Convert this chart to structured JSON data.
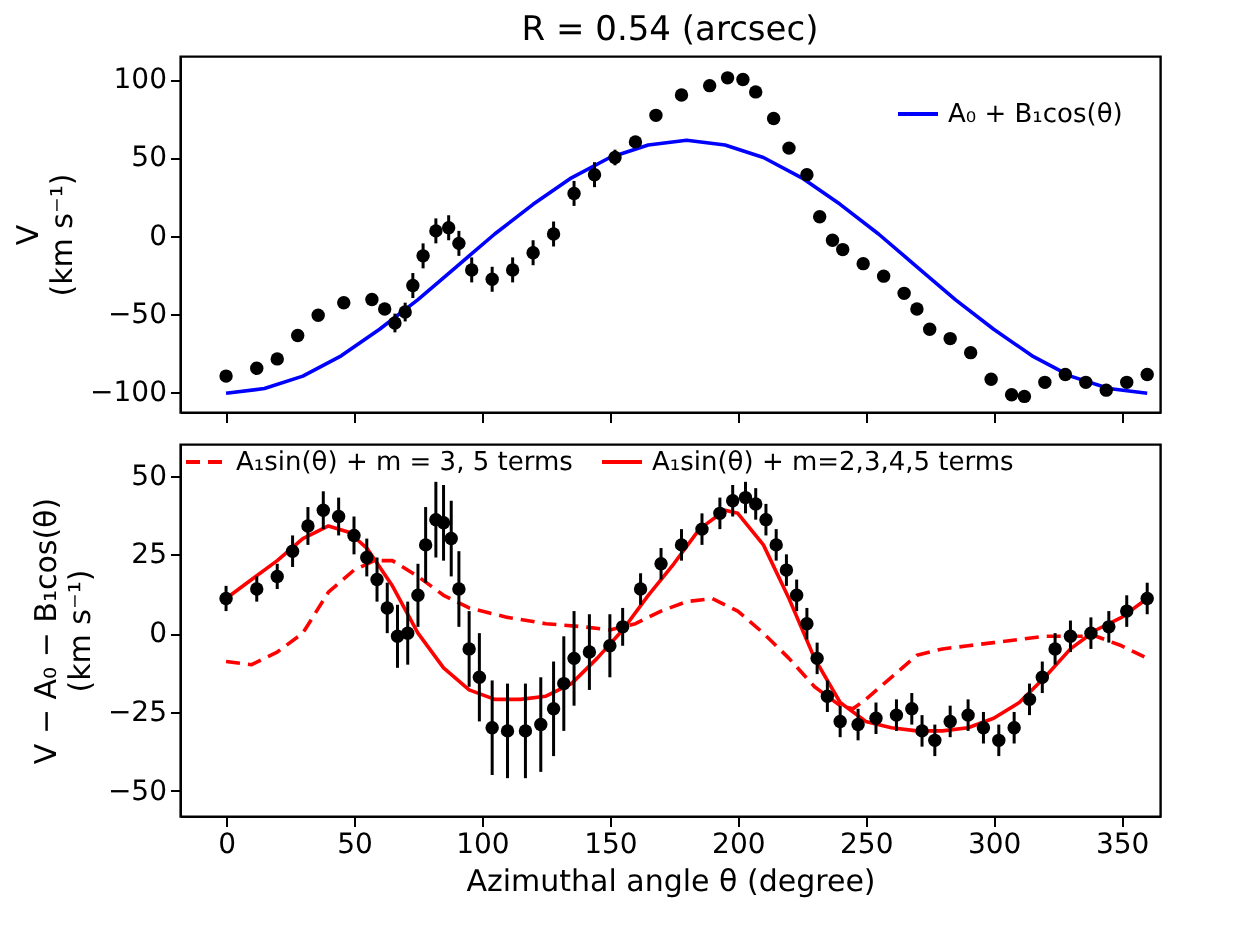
{
  "chart_data": [
    {
      "type": "scatter",
      "title": "R = 0.54 (arcsec)",
      "ylabel": "V\n(km s⁻¹)",
      "xlim": [
        -18,
        365
      ],
      "xticks": [
        0,
        50,
        100,
        150,
        200,
        250,
        300,
        350
      ],
      "ylim": [
        -113,
        115
      ],
      "yticks": [
        -100,
        -50,
        0,
        50,
        100
      ],
      "tick_labels": "y",
      "legend": "top right",
      "series": [
        {
          "marker": "circle",
          "color": "#000000",
          "x": [
            0,
            12,
            20,
            28,
            36,
            46,
            57,
            62,
            66,
            70,
            73,
            77,
            82,
            87,
            91,
            96,
            104,
            112,
            120,
            128,
            136,
            144,
            152,
            160,
            168,
            178,
            189,
            196,
            202,
            207,
            214,
            220,
            227,
            232,
            237,
            241,
            249,
            257,
            265,
            270,
            275,
            283,
            291,
            299,
            307,
            312,
            320,
            328,
            336,
            344,
            352,
            360
          ],
          "values": [
            -90,
            -85,
            -79,
            -64,
            -51,
            -43,
            -41,
            -47,
            -56,
            -49,
            -32,
            -13,
            3,
            5,
            -5,
            -22,
            -28,
            -22,
            -11,
            1,
            27,
            39,
            50,
            60,
            77,
            90,
            96,
            101,
            100,
            92,
            75,
            56,
            39,
            12,
            -3,
            -9,
            -18,
            -26,
            -37,
            -47,
            -60,
            -66,
            -75,
            -92,
            -102,
            -103,
            -94,
            -89,
            -94,
            -99,
            -94,
            -89
          ],
          "errors": [
            2,
            2,
            2,
            2,
            2,
            2,
            2,
            3,
            6,
            6,
            8,
            8,
            8,
            8,
            8,
            8,
            8,
            8,
            8,
            8,
            8,
            8,
            5,
            3,
            2,
            2,
            2,
            2,
            2,
            2,
            2,
            2,
            2,
            2,
            2,
            2,
            2,
            2,
            2,
            2,
            2,
            2,
            2,
            2,
            2,
            2,
            2,
            2,
            2,
            2,
            2,
            2
          ]
        },
        {
          "type": "line",
          "marker": "none",
          "name": "A₀ + B₁cos(θ)",
          "color": "#0000ff",
          "line_style": "solid",
          "x": [
            0,
            15,
            30,
            45,
            60,
            75,
            90,
            105,
            120,
            135,
            150,
            165,
            180,
            195,
            210,
            225,
            240,
            255,
            270,
            285,
            300,
            315,
            330,
            345,
            360
          ],
          "values": [
            -101,
            -98,
            -90,
            -77,
            -60,
            -41,
            -20,
            1,
            20,
            37,
            50,
            58,
            61,
            58,
            50,
            37,
            20,
            1,
            -20,
            -41,
            -60,
            -77,
            -90,
            -98,
            -101
          ]
        }
      ]
    },
    {
      "type": "scatter",
      "xlabel": "Azimuthal angle θ (degree)",
      "ylabel": "V − A₀ − B₁cos(θ)\n(km s⁻¹)",
      "xlim": [
        -18,
        365
      ],
      "xticks": [
        0,
        50,
        100,
        150,
        200,
        250,
        300,
        350
      ],
      "ylim": [
        -58,
        60
      ],
      "yticks": [
        -50,
        -25,
        0,
        25,
        50
      ],
      "legend": "top",
      "series": [
        {
          "marker": "circle",
          "color": "#000000",
          "x": [
            0,
            12,
            20,
            26,
            32,
            38,
            44,
            50,
            55,
            59,
            63,
            67,
            71,
            75,
            78,
            82,
            85,
            88,
            91,
            95,
            99,
            104,
            110,
            117,
            123,
            128,
            132,
            136,
            142,
            150,
            155,
            162,
            170,
            178,
            186,
            193,
            198,
            203,
            207,
            211,
            215,
            219,
            223,
            227,
            231,
            235,
            240,
            247,
            254,
            262,
            268,
            272,
            277,
            283,
            290,
            296,
            302,
            308,
            314,
            319,
            324,
            330,
            338,
            345,
            352,
            360
          ],
          "values": [
            11,
            14,
            18,
            26,
            34,
            39,
            37,
            31,
            24,
            17,
            8,
            -1,
            0,
            12,
            28,
            36,
            35,
            30,
            14,
            -5,
            -14,
            -30,
            -31,
            -31,
            -29,
            -24,
            -16,
            -8,
            -6,
            -4,
            2,
            14,
            22,
            28,
            33,
            38,
            42,
            43,
            41,
            36,
            28,
            20,
            12,
            3,
            -8,
            -20,
            -28,
            -29,
            -27,
            -26,
            -24,
            -31,
            -34,
            -28,
            -26,
            -30,
            -34,
            -30,
            -21,
            -14,
            -5,
            -1,
            0,
            2,
            7,
            11
          ],
          "errors": [
            4,
            4,
            4,
            5,
            6,
            6,
            6,
            6,
            6,
            7,
            8,
            10,
            10,
            10,
            12,
            12,
            12,
            12,
            12,
            12,
            14,
            15,
            15,
            15,
            15,
            15,
            15,
            15,
            12,
            10,
            6,
            5,
            5,
            5,
            5,
            5,
            5,
            5,
            5,
            5,
            5,
            5,
            5,
            5,
            5,
            5,
            5,
            5,
            5,
            5,
            5,
            5,
            5,
            5,
            5,
            5,
            5,
            5,
            5,
            5,
            5,
            5,
            5,
            5,
            5,
            5
          ]
        },
        {
          "type": "line",
          "marker": "none",
          "name": "A₁sin(θ) + m = 3, 5 terms",
          "color": "#ff0000",
          "line_style": "dashed",
          "x": [
            0,
            10,
            20,
            30,
            40,
            50,
            58,
            65,
            75,
            85,
            95,
            110,
            125,
            140,
            150,
            160,
            170,
            180,
            190,
            200,
            210,
            220,
            230,
            240,
            245,
            250,
            260,
            270,
            280,
            290,
            300,
            320,
            340,
            350,
            360
          ],
          "values": [
            -9,
            -10,
            -6,
            0,
            13,
            20,
            23,
            23,
            18,
            12,
            8,
            5,
            3,
            2,
            1,
            3,
            7,
            10,
            11,
            7,
            0,
            -8,
            -17,
            -23,
            -24,
            -21,
            -14,
            -7,
            -5,
            -4,
            -3,
            -1,
            -1,
            -4,
            -8
          ]
        },
        {
          "type": "line",
          "marker": "none",
          "name": "A₁sin(θ) + m=2,3,4,5 terms",
          "color": "#ff0000",
          "line_style": "solid",
          "x": [
            0,
            10,
            20,
            30,
            40,
            48,
            55,
            65,
            75,
            85,
            95,
            105,
            115,
            125,
            135,
            145,
            155,
            165,
            175,
            185,
            195,
            200,
            210,
            220,
            230,
            240,
            250,
            260,
            270,
            280,
            290,
            300,
            310,
            320,
            330,
            340,
            350,
            360
          ],
          "values": [
            11,
            17,
            23,
            30,
            34,
            32,
            27,
            15,
            0,
            -11,
            -18,
            -21,
            -21,
            -20,
            -16,
            -8,
            1,
            12,
            22,
            33,
            39,
            38,
            28,
            11,
            -8,
            -22,
            -28,
            -30,
            -31,
            -31,
            -30,
            -27,
            -22,
            -14,
            -5,
            1,
            5,
            11
          ]
        }
      ]
    }
  ]
}
